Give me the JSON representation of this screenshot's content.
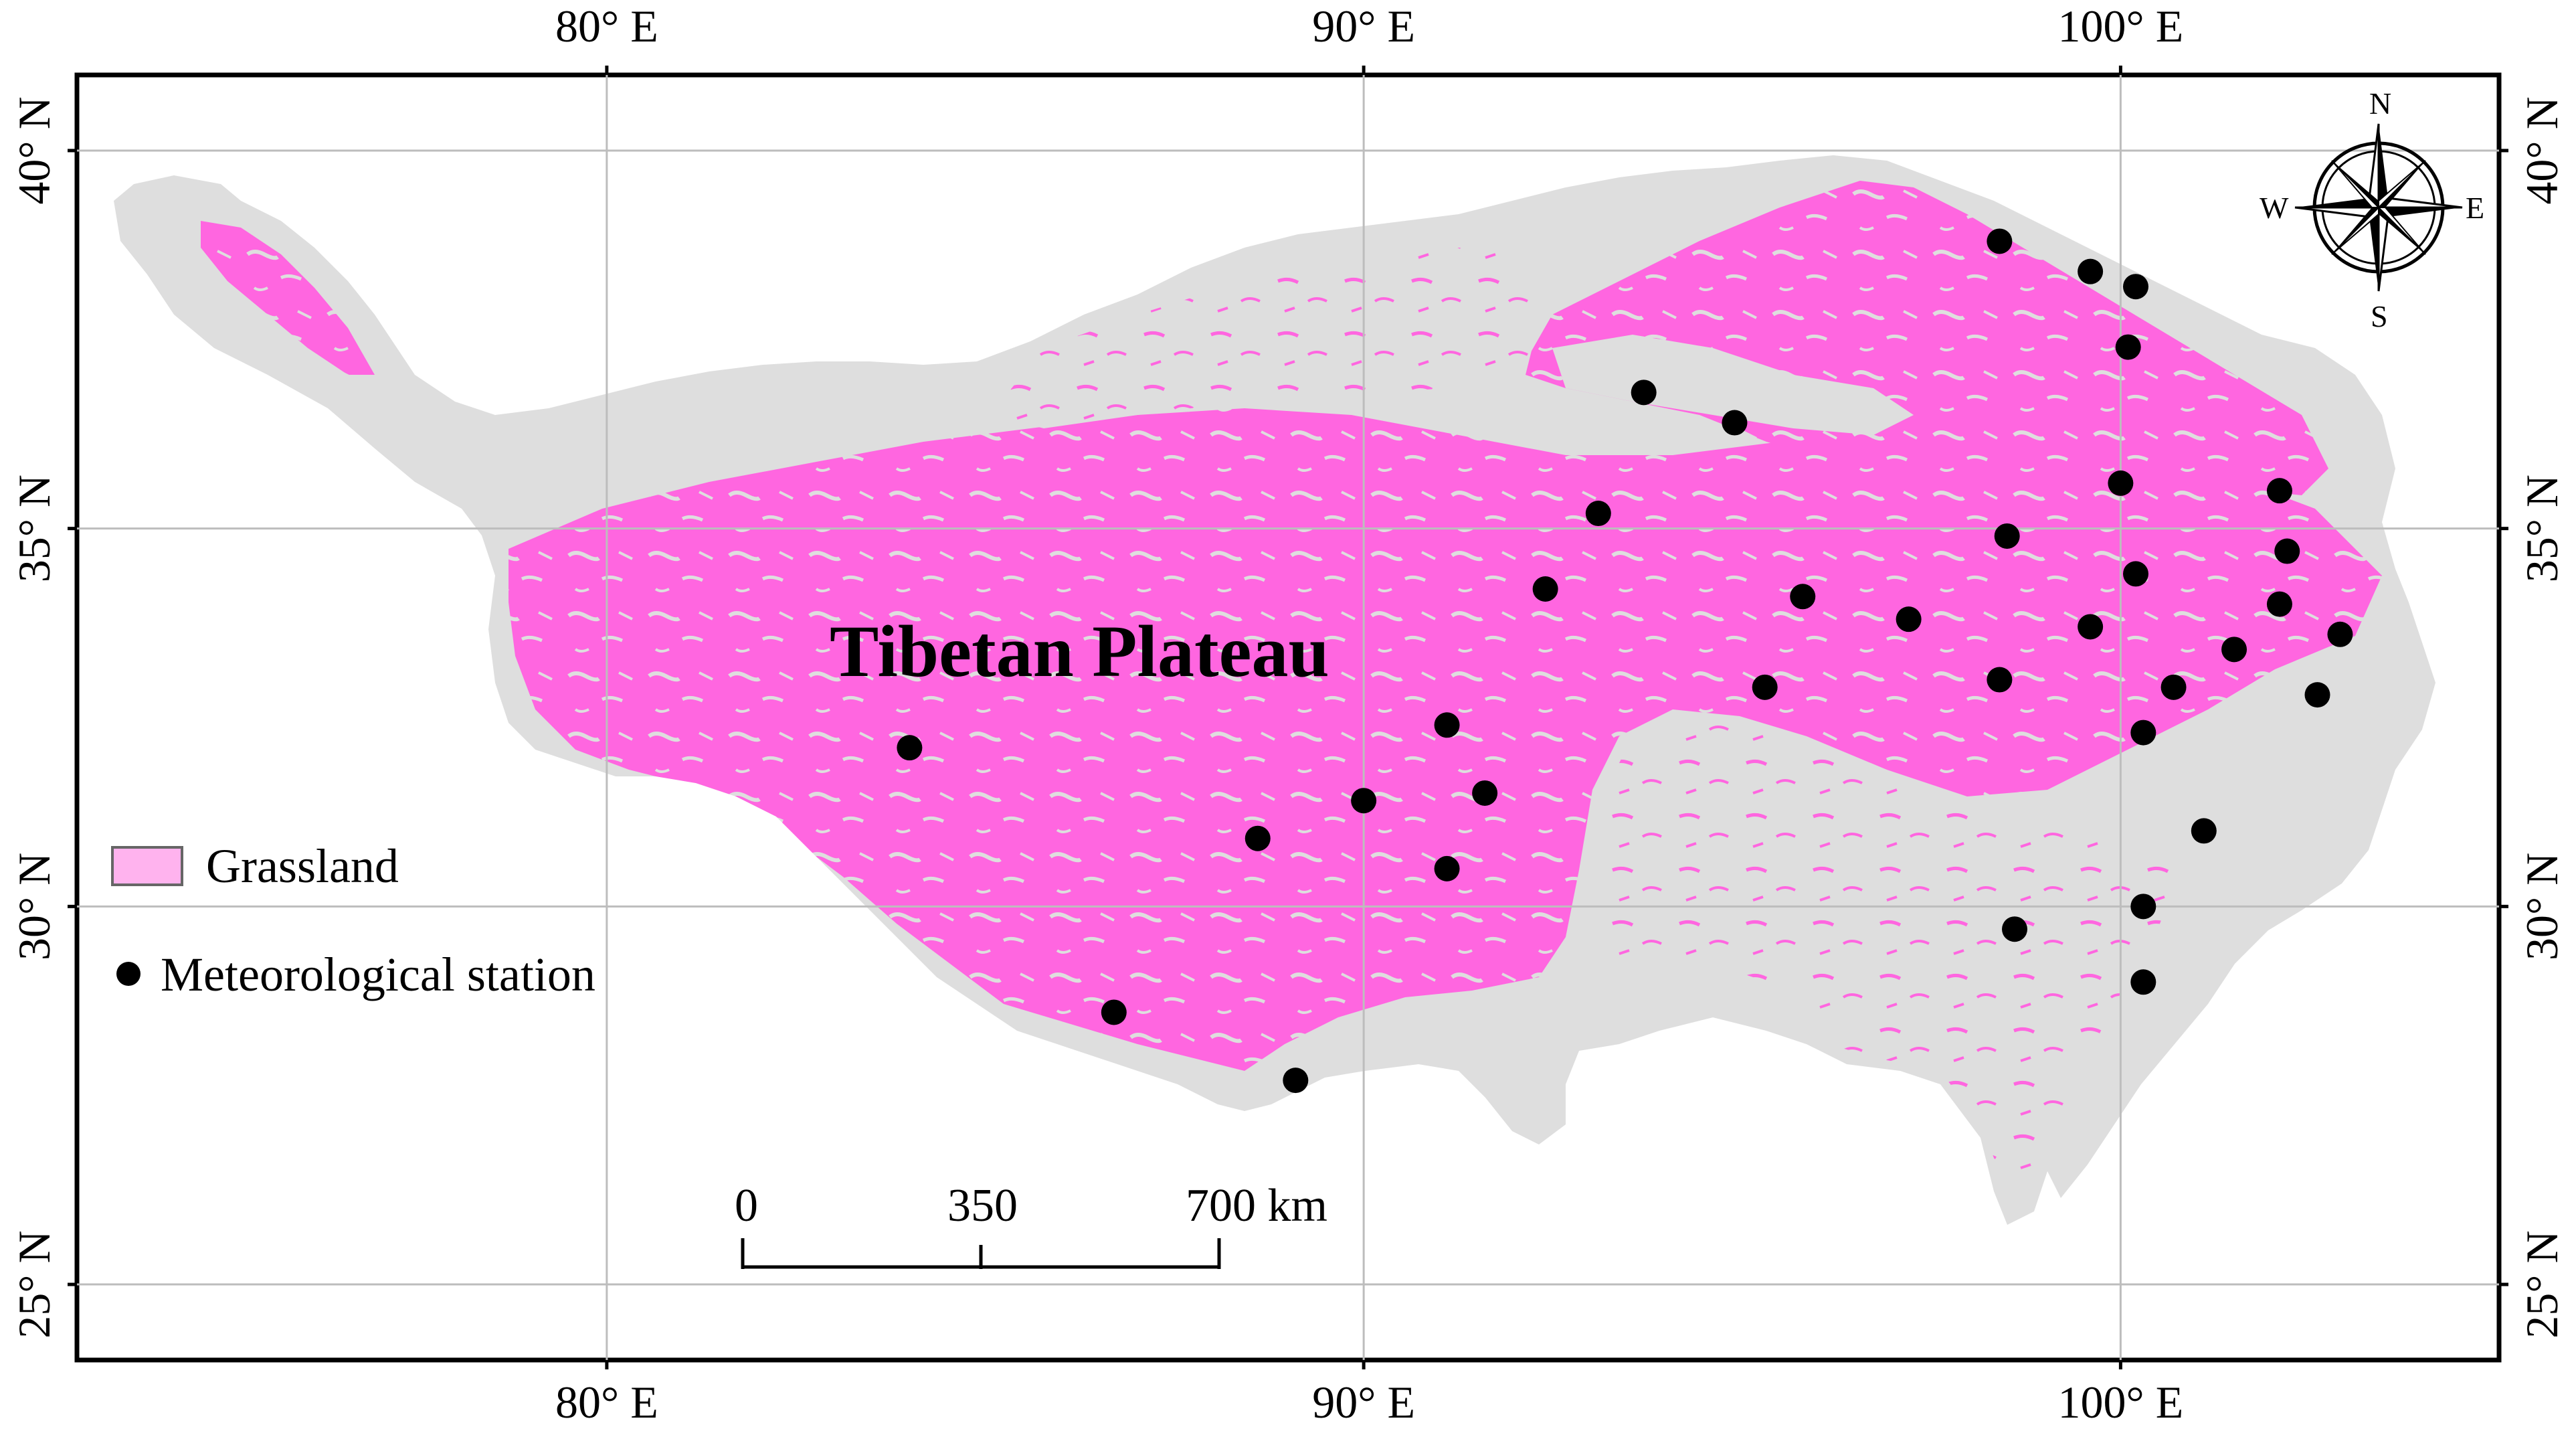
{
  "map": {
    "title": "Tibetan Plateau",
    "lon_ticks": [
      {
        "label": "80° E",
        "value": 80
      },
      {
        "label": "90° E",
        "value": 90
      },
      {
        "label": "100° E",
        "value": 100
      }
    ],
    "lat_ticks": [
      {
        "label": "40° N",
        "value": 40
      },
      {
        "label": "35° N",
        "value": 35
      },
      {
        "label": "30° N",
        "value": 30
      },
      {
        "label": "25° N",
        "value": 25
      }
    ],
    "extent": {
      "lon_min": 73,
      "lon_max": 105,
      "lat_min": 24,
      "lat_max": 41
    },
    "colors": {
      "grassland": "#ff66e0",
      "plateau": "#dedede",
      "station": "#000000",
      "grid": "#bdbdbd"
    }
  },
  "legend": {
    "grassland_label": "Grassland",
    "station_label": "Meteorological station"
  },
  "scale_bar": {
    "labels": [
      "0",
      "350",
      "700 km"
    ]
  },
  "compass": {
    "n": "N",
    "s": "S",
    "e": "E",
    "w": "W"
  },
  "stations": [
    {
      "lon": 98.4,
      "lat": 38.8
    },
    {
      "lon": 99.6,
      "lat": 38.4
    },
    {
      "lon": 100.2,
      "lat": 38.2
    },
    {
      "lon": 100.1,
      "lat": 37.4
    },
    {
      "lon": 93.7,
      "lat": 36.8
    },
    {
      "lon": 94.9,
      "lat": 36.4
    },
    {
      "lon": 100.0,
      "lat": 35.6
    },
    {
      "lon": 102.1,
      "lat": 35.5
    },
    {
      "lon": 93.1,
      "lat": 35.2
    },
    {
      "lon": 98.5,
      "lat": 34.9
    },
    {
      "lon": 102.2,
      "lat": 34.7
    },
    {
      "lon": 100.2,
      "lat": 34.4
    },
    {
      "lon": 92.4,
      "lat": 34.2
    },
    {
      "lon": 95.8,
      "lat": 34.1
    },
    {
      "lon": 97.2,
      "lat": 33.8
    },
    {
      "lon": 102.1,
      "lat": 34.0
    },
    {
      "lon": 99.6,
      "lat": 33.7
    },
    {
      "lon": 102.9,
      "lat": 33.6
    },
    {
      "lon": 101.5,
      "lat": 33.4
    },
    {
      "lon": 98.4,
      "lat": 33.0
    },
    {
      "lon": 95.3,
      "lat": 32.9
    },
    {
      "lon": 100.7,
      "lat": 32.9
    },
    {
      "lon": 102.6,
      "lat": 32.8
    },
    {
      "lon": 91.1,
      "lat": 32.4
    },
    {
      "lon": 100.3,
      "lat": 32.3
    },
    {
      "lon": 84.0,
      "lat": 32.1
    },
    {
      "lon": 91.6,
      "lat": 31.5
    },
    {
      "lon": 90.0,
      "lat": 31.4
    },
    {
      "lon": 88.6,
      "lat": 30.9
    },
    {
      "lon": 101.1,
      "lat": 31.0
    },
    {
      "lon": 91.1,
      "lat": 30.5
    },
    {
      "lon": 100.3,
      "lat": 30.0
    },
    {
      "lon": 98.6,
      "lat": 29.7
    },
    {
      "lon": 100.3,
      "lat": 29.0
    },
    {
      "lon": 86.7,
      "lat": 28.6
    },
    {
      "lon": 89.1,
      "lat": 27.7
    }
  ]
}
